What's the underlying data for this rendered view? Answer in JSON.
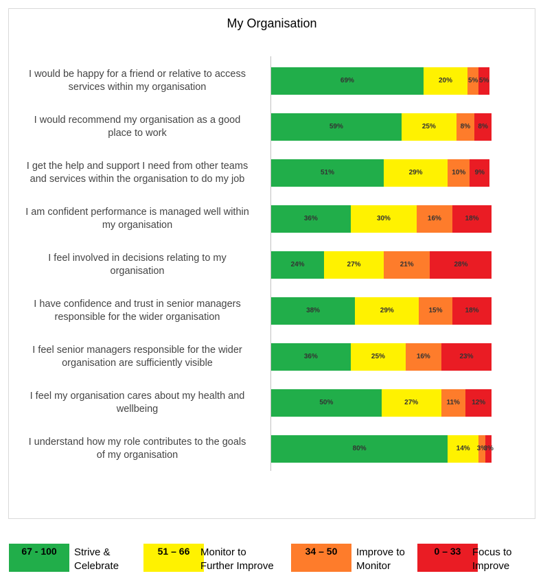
{
  "chart_data": {
    "type": "bar",
    "orientation": "horizontal",
    "stacked": true,
    "title": "My Organisation",
    "categories": [
      [
        "I would be happy for a friend or relative to access",
        "services within my organisation"
      ],
      [
        "I would recommend my organisation as a good",
        "place to work"
      ],
      [
        "I get the help and support I need from other teams",
        "and services within the organisation to do my job"
      ],
      [
        "I am confident performance is managed well within",
        "my organisation"
      ],
      [
        "I feel involved in decisions relating to my",
        "organisation"
      ],
      [
        "I have confidence and trust in senior managers",
        "responsible for the wider organisation"
      ],
      [
        "I feel senior managers responsible for the wider",
        "organisation are sufficiently visible"
      ],
      [
        "I feel my organisation cares about my health and",
        "wellbeing"
      ],
      [
        "I understand how my role contributes to the goals",
        "of my organisation"
      ]
    ],
    "series": [
      {
        "color": "#21ae4a",
        "values": [
          69,
          59,
          51,
          36,
          24,
          38,
          36,
          50,
          80
        ]
      },
      {
        "color": "#fff200",
        "values": [
          20,
          25,
          29,
          30,
          27,
          29,
          25,
          27,
          14
        ]
      },
      {
        "color": "#fe7c2b",
        "values": [
          5,
          8,
          10,
          16,
          21,
          15,
          16,
          11,
          3
        ]
      },
      {
        "color": "#ea1c24",
        "values": [
          5,
          8,
          9,
          18,
          28,
          18,
          23,
          12,
          3
        ]
      }
    ],
    "value_labels": [
      [
        "69%",
        "20%",
        "5%",
        "5%"
      ],
      [
        "59%",
        "25%",
        "8%",
        "8%"
      ],
      [
        "51%",
        "29%",
        "10%",
        "9%"
      ],
      [
        "36%",
        "30%",
        "16%",
        "18%"
      ],
      [
        "24%",
        "27%",
        "21%",
        "28%"
      ],
      [
        "38%",
        "29%",
        "15%",
        "18%"
      ],
      [
        "36%",
        "25%",
        "16%",
        "23%"
      ],
      [
        "50%",
        "27%",
        "11%",
        "12%"
      ],
      [
        "80%",
        "14%",
        "3%",
        "3%"
      ]
    ]
  },
  "legend": [
    {
      "range": "67 - 100",
      "text": [
        "Strive &",
        "Celebrate"
      ],
      "color": "#21ae4a"
    },
    {
      "range": "51 – 66",
      "text": [
        "Monitor to",
        "Further Improve"
      ],
      "color": "#fff200"
    },
    {
      "range": "34 – 50",
      "text": [
        "Improve to",
        "Monitor"
      ],
      "color": "#fe7c2b"
    },
    {
      "range": "0 – 33",
      "text": [
        "Focus to",
        "Improve"
      ],
      "color": "#ea1c24"
    }
  ]
}
